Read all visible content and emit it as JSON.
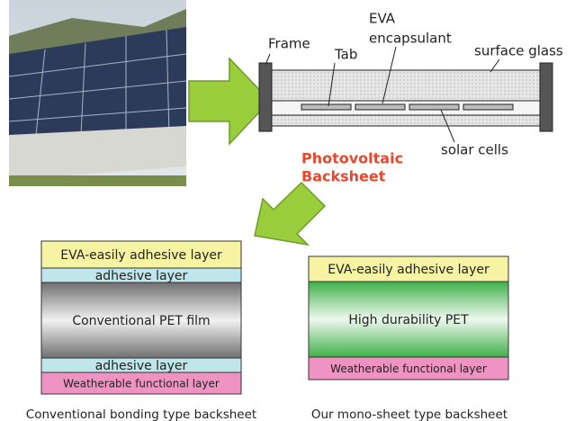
{
  "cross_section": {
    "frame": "Frame",
    "tab": "Tab",
    "eva_line1": "EVA",
    "eva_line2": "encapsulant",
    "surface_glass": "surface glass",
    "solar_cells": "solar cells",
    "backsheet_line1": "Photovoltaic",
    "backsheet_line2": "Backsheet"
  },
  "conventional": {
    "layers": [
      "EVA-easily adhesive layer",
      "adhesive layer",
      "Conventional PET film",
      "adhesive layer",
      "Weatherable functional layer"
    ],
    "caption": "Conventional bonding type backsheet"
  },
  "mono": {
    "layers": [
      "EVA-easily adhesive layer",
      "High durability PET",
      "Weatherable functional layer"
    ],
    "caption": "Our mono-sheet type backsheet"
  }
}
